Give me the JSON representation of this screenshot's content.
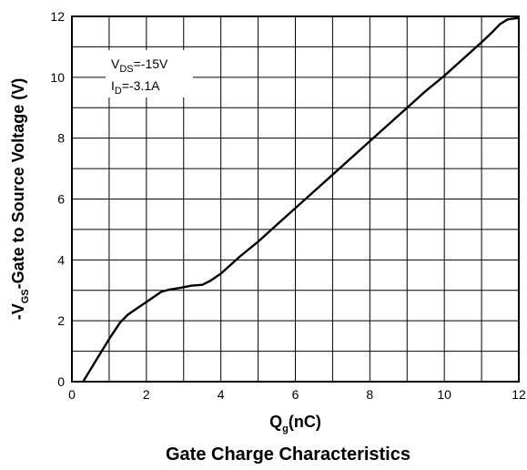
{
  "chart_data": {
    "type": "line",
    "title": "Gate Charge Characteristics",
    "xlabel": {
      "main": "Q",
      "sub": "g",
      "rest": "(nC)"
    },
    "ylabel": {
      "prefix": "-V",
      "sub": "GS",
      "rest": "-Gate to Source Voltage (V)"
    },
    "xlim": [
      0,
      12
    ],
    "ylim": [
      0,
      12
    ],
    "x_ticks": [
      0,
      2,
      4,
      6,
      8,
      10,
      12
    ],
    "y_ticks": [
      0,
      2,
      4,
      6,
      8,
      10,
      12
    ],
    "grid": true,
    "annotations": [
      {
        "main": "V",
        "sub": "DS",
        "rest": "=-15V"
      },
      {
        "main": "I",
        "sub": "D",
        "rest": "=-3.1A"
      }
    ],
    "series": [
      {
        "x": [
          0.3,
          0.45,
          0.7,
          1.0,
          1.3,
          1.5,
          1.8,
          2.1,
          2.4,
          2.6,
          2.9,
          3.2,
          3.5,
          3.7,
          4.0,
          4.5,
          5.0,
          5.5,
          6.0,
          6.5,
          7.0,
          7.5,
          8.0,
          8.5,
          9.0,
          9.5,
          10.0,
          10.5,
          11.0,
          11.3,
          11.5,
          11.7,
          12.0
        ],
        "y": [
          0.0,
          0.3,
          0.8,
          1.4,
          1.95,
          2.2,
          2.45,
          2.7,
          2.95,
          3.02,
          3.08,
          3.15,
          3.18,
          3.3,
          3.55,
          4.1,
          4.6,
          5.15,
          5.7,
          6.25,
          6.8,
          7.35,
          7.9,
          8.45,
          9.0,
          9.55,
          10.05,
          10.6,
          11.15,
          11.5,
          11.75,
          11.9,
          11.95
        ]
      }
    ]
  }
}
